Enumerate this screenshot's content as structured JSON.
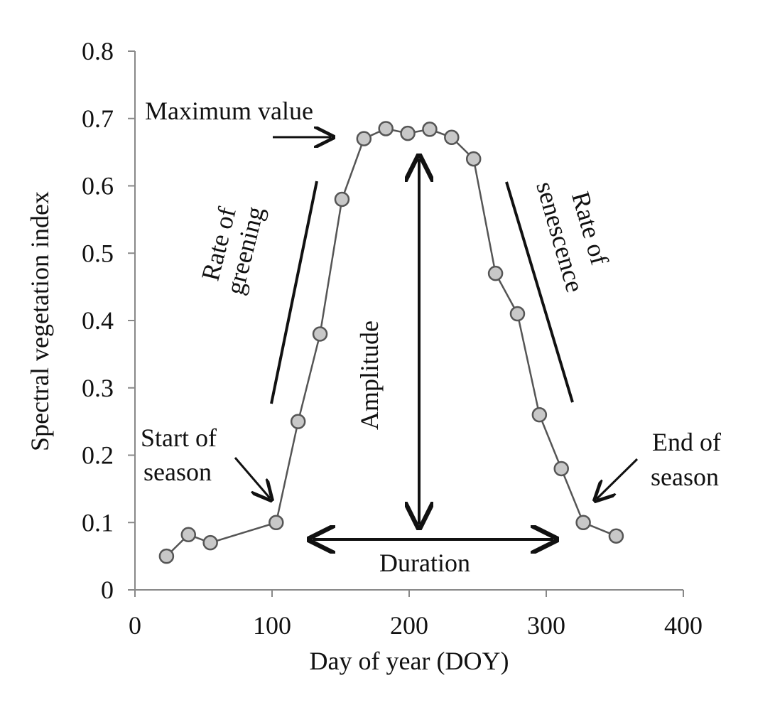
{
  "chart_data": {
    "type": "line",
    "xlabel": "Day of year (DOY)",
    "ylabel": "Spectral vegetation index",
    "xlim": [
      0,
      400
    ],
    "ylim": [
      0,
      0.8
    ],
    "x_ticks": [
      {
        "value": 0,
        "label": "0"
      },
      {
        "value": 100,
        "label": "100"
      },
      {
        "value": 200,
        "label": "200"
      },
      {
        "value": 300,
        "label": "300"
      },
      {
        "value": 400,
        "label": "400"
      }
    ],
    "y_ticks": [
      {
        "value": 0,
        "label": "0"
      },
      {
        "value": 0.1,
        "label": "0.1"
      },
      {
        "value": 0.2,
        "label": "0.2"
      },
      {
        "value": 0.3,
        "label": "0.3"
      },
      {
        "value": 0.4,
        "label": "0.4"
      },
      {
        "value": 0.5,
        "label": "0.5"
      },
      {
        "value": 0.6,
        "label": "0.6"
      },
      {
        "value": 0.7,
        "label": "0.7"
      },
      {
        "value": 0.8,
        "label": "0.8"
      }
    ],
    "grid": false,
    "series": [
      {
        "x": [
          23,
          39,
          55,
          103,
          119,
          135,
          151,
          167,
          183,
          199,
          215,
          231,
          247,
          263,
          279,
          295,
          311,
          327,
          351
        ],
        "y": [
          0.05,
          0.082,
          0.07,
          0.1,
          0.25,
          0.38,
          0.58,
          0.67,
          0.685,
          0.678,
          0.684,
          0.672,
          0.64,
          0.47,
          0.41,
          0.26,
          0.18,
          0.1,
          0.08
        ],
        "color": "#555555",
        "marker_fill": "#c8c8c8"
      }
    ],
    "annotations": [
      {
        "key": "maximum-value",
        "lines": [
          "Maximum value"
        ]
      },
      {
        "key": "rate-of-greening",
        "lines": [
          "Rate of",
          "greening"
        ]
      },
      {
        "key": "rate-of-senescence",
        "lines": [
          "Rate of",
          "senescence"
        ]
      },
      {
        "key": "amplitude",
        "lines": [
          "Amplitude"
        ]
      },
      {
        "key": "duration",
        "lines": [
          "Duration"
        ]
      },
      {
        "key": "start-of-season",
        "lines": [
          "Start of",
          "season"
        ]
      },
      {
        "key": "end-of-season",
        "lines": [
          "End of",
          "season"
        ]
      }
    ]
  }
}
